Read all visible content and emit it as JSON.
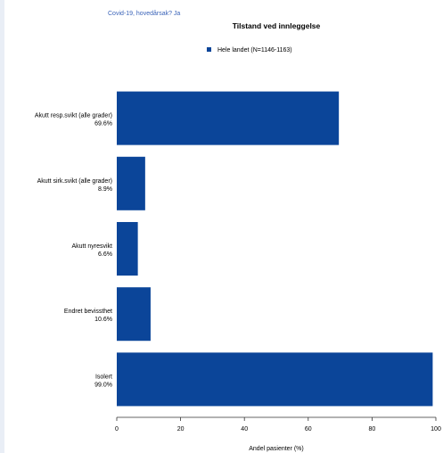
{
  "filter_text": "Covid-19, hovedårsak? Ja",
  "chart_data": {
    "type": "bar",
    "orientation": "horizontal",
    "title": "Tilstand ved innleggelse",
    "legend": {
      "label": "Hele landet (N=1146-1163)",
      "color": "#0b4599",
      "position": "top"
    },
    "xlabel": "Andel pasienter (%)",
    "xlim": [
      0,
      100
    ],
    "xticks": [
      0,
      20,
      40,
      60,
      80,
      100
    ],
    "grid": false,
    "categories": [
      {
        "label": "Akutt resp.svikt (alle grader)",
        "value_label": "69.6%",
        "value": 69.6
      },
      {
        "label": "Akutt sirk.svikt (alle grader)",
        "value_label": "8.9%",
        "value": 8.9
      },
      {
        "label": "Akutt nyresvikt",
        "value_label": "6.6%",
        "value": 6.6
      },
      {
        "label": "Endret bevissthet",
        "value_label": "10.6%",
        "value": 10.6
      },
      {
        "label": "Isolert",
        "value_label": "99.0%",
        "value": 99.0
      }
    ],
    "bar_color": "#0b4599"
  }
}
